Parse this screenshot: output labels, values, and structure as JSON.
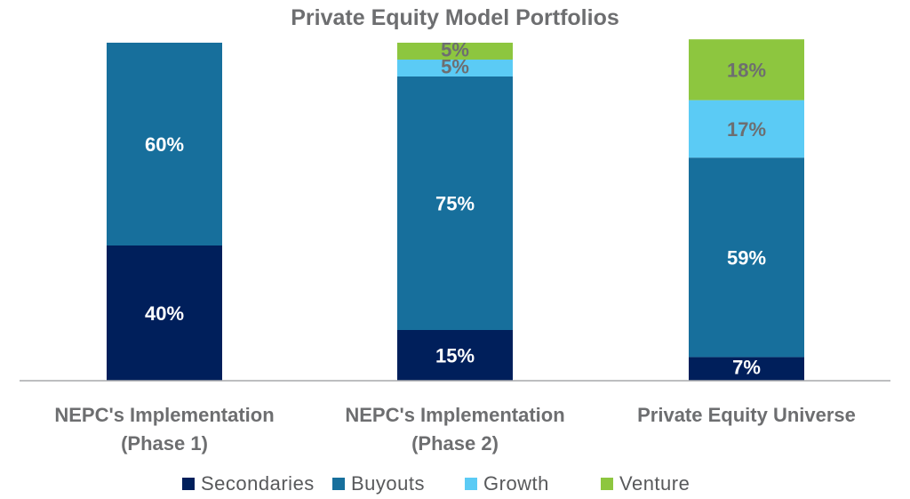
{
  "chart_data": {
    "type": "bar",
    "stacked": true,
    "title": "Private Equity Model Portfolios",
    "xlabel": "",
    "ylabel": "",
    "ylim": [
      0,
      100
    ],
    "grid": false,
    "legend_position": "bottom",
    "categories": [
      [
        "NEPC's Implementation",
        "(Phase 1)"
      ],
      [
        "NEPC's Implementation",
        "(Phase 2)"
      ],
      [
        "Private Equity Universe"
      ]
    ],
    "series": [
      {
        "name": "Secondaries",
        "color": "#001f5b",
        "label_color": "#ffffff",
        "values": [
          40,
          15,
          7
        ]
      },
      {
        "name": "Buyouts",
        "color": "#176f9c",
        "label_color": "#ffffff",
        "values": [
          60,
          75,
          59
        ]
      },
      {
        "name": "Growth",
        "color": "#5bcbf5",
        "label_color": "#6d6e70",
        "values": [
          0,
          5,
          17
        ]
      },
      {
        "name": "Venture",
        "color": "#8dc63f",
        "label_color": "#6d6e70",
        "values": [
          0,
          5,
          18
        ]
      }
    ],
    "value_labels": [
      [
        "40%",
        "15%",
        "7%"
      ],
      [
        "60%",
        "75%",
        "59%"
      ],
      [
        "",
        "5%",
        "17%"
      ],
      [
        "",
        "5%",
        "18%"
      ]
    ]
  }
}
